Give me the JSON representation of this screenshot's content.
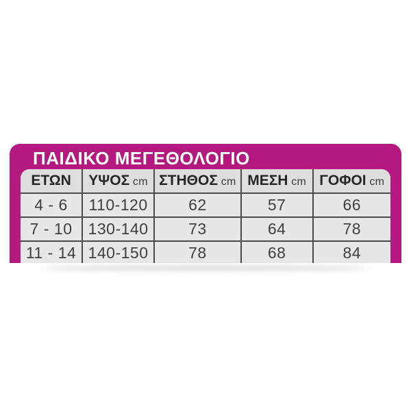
{
  "panel": {
    "title": "ΠΑΙΔΙΚΟ ΜΕΓΕΘΟΛΟΓΙΟ"
  },
  "colors": {
    "accent_magenta": "#b41980",
    "header_bg": "#dedede",
    "row_bg": "#e7e7e7",
    "grid_line": "#4a4a4a",
    "header_text": "#262626",
    "cell_text": "#3f3f3f",
    "title_text": "#ffffff"
  },
  "chart_data": {
    "type": "table",
    "title": "ΠΑΙΔΙΚΟ ΜΕΓΕΘΟΛΟΓΙΟ",
    "columns": [
      {
        "label": "ΕΤΩΝ",
        "unit": ""
      },
      {
        "label": "ΥΨΟΣ",
        "unit": "cm"
      },
      {
        "label": "ΣΤΗΘΟΣ",
        "unit": "cm"
      },
      {
        "label": "ΜΕΣΗ",
        "unit": "cm"
      },
      {
        "label": "ΓΟΦΟΙ",
        "unit": "cm"
      }
    ],
    "rows": [
      [
        "4 - 6",
        "110-120",
        "62",
        "57",
        "66"
      ],
      [
        "7 - 10",
        "130-140",
        "73",
        "64",
        "78"
      ],
      [
        "11 - 14",
        "140-150",
        "78",
        "68",
        "84"
      ]
    ],
    "layout_hint": "header row gray, 3 data rows, bottom row cropped by image edge"
  }
}
